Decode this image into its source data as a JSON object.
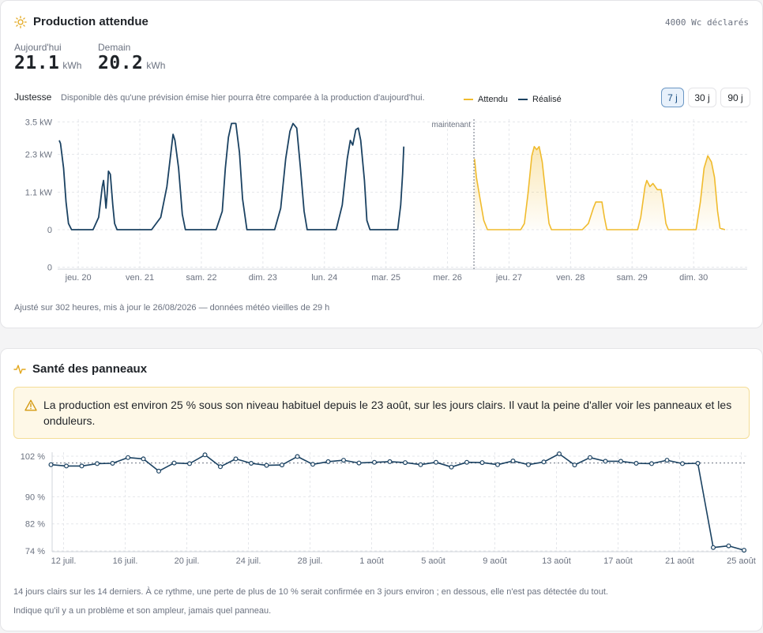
{
  "production": {
    "title": "Production attendue",
    "declared": "4000 Wc déclarés",
    "today_label": "Aujourd'hui",
    "today_value": "21.1",
    "today_unit": "kWh",
    "tomorrow_label": "Demain",
    "tomorrow_value": "20.2",
    "tomorrow_unit": "kWh",
    "accuracy_label": "Justesse",
    "accuracy_note": "Disponible dès qu'une prévision émise hier pourra être comparée à la production d'aujourd'hui.",
    "legend_expected": "Attendu",
    "legend_actual": "Réalisé",
    "range_options": [
      "7 j",
      "30 j",
      "90 j"
    ],
    "range_selected": "7 j",
    "now_label": "maintenant",
    "footer": "Ajusté sur 302 heures, mis à jour le 26/08/2026 — données météo vieilles de 29 h"
  },
  "health": {
    "title": "Santé des panneaux",
    "alert": "La production est environ 25 % sous son niveau habituel depuis le 23 août, sur les jours clairs. Il vaut la peine d'aller voir les panneaux et les onduleurs.",
    "note1": "14 jours clairs sur les 14 derniers. À ce rythme, une perte de plus de 10 % serait confirmée en 3 jours environ ; en dessous, elle n'est pas détectée du tout.",
    "note2": "Indique qu'il y a un problème et son ampleur, jamais quel panneau."
  },
  "colors": {
    "actual": "#1b4262",
    "expected": "#f0bb2d",
    "grid": "#e5e7eb",
    "alert_bg": "#fef8e7",
    "alert_border": "#f4dd97"
  },
  "icons": {
    "production": "sun-icon",
    "health": "activity-icon",
    "alert": "warning-triangle-icon"
  },
  "chart_data": [
    {
      "type": "line",
      "ylabel": "",
      "y_ticks": [
        "3.5 kW",
        "2.3 kW",
        "1.1 kW",
        "0",
        "0"
      ],
      "x_ticks": [
        "jeu. 20",
        "ven. 21",
        "sam. 22",
        "dim. 23",
        "lun. 24",
        "mar. 25",
        "mer. 26",
        "jeu. 27",
        "ven. 28",
        "sam. 29",
        "dim. 30"
      ],
      "ylim": [
        -1.2,
        3.5
      ],
      "grid": true,
      "legend_position": "top",
      "now_day": 6.74,
      "series": [
        {
          "name": "Réalisé",
          "points": [
            [
              0.0,
              2.9
            ],
            [
              0.02,
              2.8
            ],
            [
              0.07,
              2.0
            ],
            [
              0.11,
              0.9
            ],
            [
              0.15,
              0.2
            ],
            [
              0.2,
              0.0
            ],
            [
              0.55,
              0.0
            ],
            [
              0.64,
              0.4
            ],
            [
              0.7,
              1.4
            ],
            [
              0.72,
              1.6
            ],
            [
              0.74,
              1.2
            ],
            [
              0.76,
              0.7
            ],
            [
              0.78,
              1.2
            ],
            [
              0.8,
              1.9
            ],
            [
              0.83,
              1.8
            ],
            [
              0.87,
              0.8
            ],
            [
              0.9,
              0.2
            ],
            [
              0.94,
              0.0
            ],
            [
              1.5,
              0.0
            ],
            [
              1.65,
              0.4
            ],
            [
              1.75,
              1.4
            ],
            [
              1.82,
              2.6
            ],
            [
              1.85,
              3.1
            ],
            [
              1.88,
              2.9
            ],
            [
              1.94,
              2.0
            ],
            [
              2.0,
              0.5
            ],
            [
              2.05,
              0.0
            ],
            [
              2.55,
              0.0
            ],
            [
              2.65,
              0.6
            ],
            [
              2.7,
              2.0
            ],
            [
              2.75,
              3.0
            ],
            [
              2.8,
              3.45
            ],
            [
              2.87,
              3.45
            ],
            [
              2.93,
              2.5
            ],
            [
              2.98,
              1.0
            ],
            [
              3.05,
              0.0
            ],
            [
              3.5,
              0.0
            ],
            [
              3.6,
              0.7
            ],
            [
              3.68,
              2.3
            ],
            [
              3.75,
              3.2
            ],
            [
              3.8,
              3.45
            ],
            [
              3.86,
              3.3
            ],
            [
              3.92,
              2.0
            ],
            [
              3.98,
              0.6
            ],
            [
              4.03,
              0.0
            ],
            [
              4.5,
              0.0
            ],
            [
              4.6,
              0.8
            ],
            [
              4.68,
              2.3
            ],
            [
              4.73,
              2.9
            ],
            [
              4.77,
              2.75
            ],
            [
              4.82,
              3.25
            ],
            [
              4.86,
              3.3
            ],
            [
              4.9,
              2.9
            ],
            [
              4.96,
              1.6
            ],
            [
              5.0,
              0.3
            ],
            [
              5.05,
              0.0
            ],
            [
              5.5,
              0.0
            ],
            [
              5.55,
              0.8
            ],
            [
              5.58,
              1.8
            ],
            [
              5.6,
              2.7
            ]
          ]
        },
        {
          "name": "Attendu",
          "points": [
            [
              6.75,
              2.3
            ],
            [
              6.78,
              1.7
            ],
            [
              6.84,
              1.0
            ],
            [
              6.9,
              0.3
            ],
            [
              6.96,
              0.0
            ],
            [
              7.5,
              0.0
            ],
            [
              7.56,
              0.2
            ],
            [
              7.62,
              1.2
            ],
            [
              7.68,
              2.4
            ],
            [
              7.72,
              2.7
            ],
            [
              7.76,
              2.6
            ],
            [
              7.8,
              2.7
            ],
            [
              7.85,
              2.2
            ],
            [
              7.92,
              0.9
            ],
            [
              7.96,
              0.2
            ],
            [
              8.0,
              0.0
            ],
            [
              8.5,
              0.0
            ],
            [
              8.6,
              0.2
            ],
            [
              8.68,
              0.7
            ],
            [
              8.72,
              0.9
            ],
            [
              8.78,
              0.9
            ],
            [
              8.82,
              0.9
            ],
            [
              8.86,
              0.4
            ],
            [
              8.9,
              0.0
            ],
            [
              9.4,
              0.0
            ],
            [
              9.45,
              0.4
            ],
            [
              9.52,
              1.4
            ],
            [
              9.55,
              1.6
            ],
            [
              9.6,
              1.4
            ],
            [
              9.65,
              1.5
            ],
            [
              9.72,
              1.3
            ],
            [
              9.78,
              1.3
            ],
            [
              9.82,
              0.8
            ],
            [
              9.86,
              0.2
            ],
            [
              9.9,
              0.0
            ],
            [
              10.35,
              0.0
            ],
            [
              10.42,
              0.9
            ],
            [
              10.48,
              2.0
            ],
            [
              10.54,
              2.4
            ],
            [
              10.6,
              2.2
            ],
            [
              10.65,
              1.7
            ],
            [
              10.7,
              0.6
            ],
            [
              10.74,
              0.05
            ],
            [
              10.82,
              0.0
            ]
          ]
        }
      ]
    },
    {
      "type": "line",
      "y_ticks": [
        "102 %",
        "90 %",
        "82 %",
        "74 %"
      ],
      "x_ticks": [
        "12 juil.",
        "16 juil.",
        "20 juil.",
        "24 juil.",
        "28 juil.",
        "1 août",
        "5 août",
        "9 août",
        "13 août",
        "17 août",
        "21 août",
        "25 août"
      ],
      "ylim": [
        74,
        102
      ],
      "grid": true,
      "reference_line": 100,
      "series": [
        {
          "name": "",
          "values": [
            99.5,
            99.1,
            99.1,
            99.8,
            99.9,
            101.6,
            101.2,
            97.6,
            100.0,
            99.8,
            102.4,
            98.9,
            101.2,
            99.9,
            99.3,
            99.4,
            101.9,
            99.6,
            100.4,
            100.8,
            100.0,
            100.2,
            100.4,
            100.1,
            99.5,
            100.2,
            98.8,
            100.2,
            100.1,
            99.5,
            100.6,
            99.5,
            100.3,
            102.7,
            99.4,
            101.6,
            100.5,
            100.5,
            99.9,
            99.8,
            100.8,
            99.8,
            99.9,
            75.0,
            75.5,
            74.2
          ]
        }
      ]
    }
  ]
}
